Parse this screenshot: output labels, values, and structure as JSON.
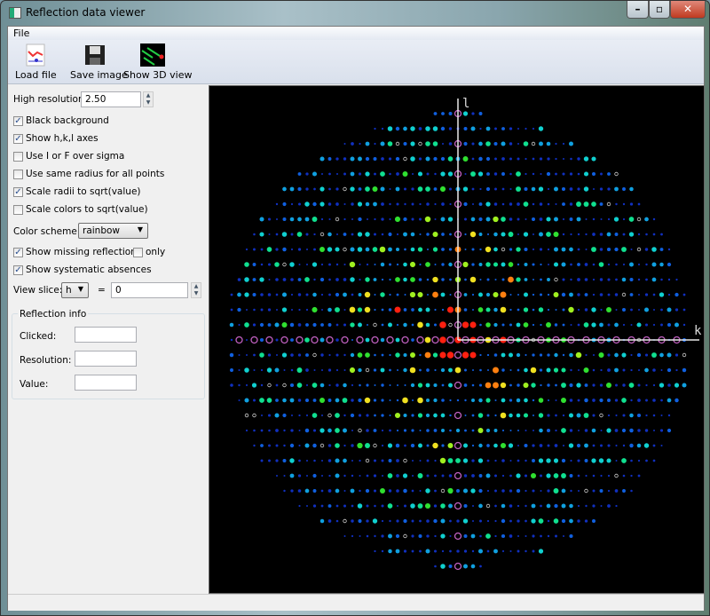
{
  "window": {
    "title": "Reflection data viewer",
    "min": "–",
    "max": "▫",
    "close": "✕"
  },
  "menu": {
    "file": "File"
  },
  "toolbar": {
    "load": "Load file",
    "save": "Save image",
    "view3d": "Show 3D view"
  },
  "controls": {
    "high_resolution_label": "High resolution:",
    "high_resolution_value": "2.50",
    "black_background": {
      "label": "Black background",
      "checked": true
    },
    "show_axes": {
      "label": "Show h,k,l axes",
      "checked": true
    },
    "use_sigma": {
      "label": "Use I or F over sigma",
      "checked": false
    },
    "same_radius": {
      "label": "Use same radius for all points",
      "checked": false
    },
    "scale_radii": {
      "label": "Scale radii to sqrt(value)",
      "checked": true
    },
    "scale_colors": {
      "label": "Scale colors to sqrt(value)",
      "checked": false
    },
    "color_scheme_label": "Color scheme:",
    "color_scheme_value": "rainbow",
    "show_missing": {
      "label": "Show missing reflections",
      "checked": true
    },
    "only": {
      "label": "only",
      "checked": false
    },
    "show_absences": {
      "label": "Show systematic absences",
      "checked": true
    },
    "view_slice_label": "View slice:",
    "view_slice_axis": "h",
    "equals": "=",
    "view_slice_value": "0"
  },
  "reflection_info": {
    "title": "Reflection info",
    "clicked_label": "Clicked:",
    "clicked": "",
    "resolution_label": "Resolution:",
    "resolution": "",
    "value_label": "Value:",
    "value": ""
  },
  "plot": {
    "vertical_axis": "l",
    "horizontal_axis": "k",
    "axis_color": "#e8e8e8",
    "missing_color": "#c060c0",
    "background": "#000000"
  },
  "check": "✓"
}
